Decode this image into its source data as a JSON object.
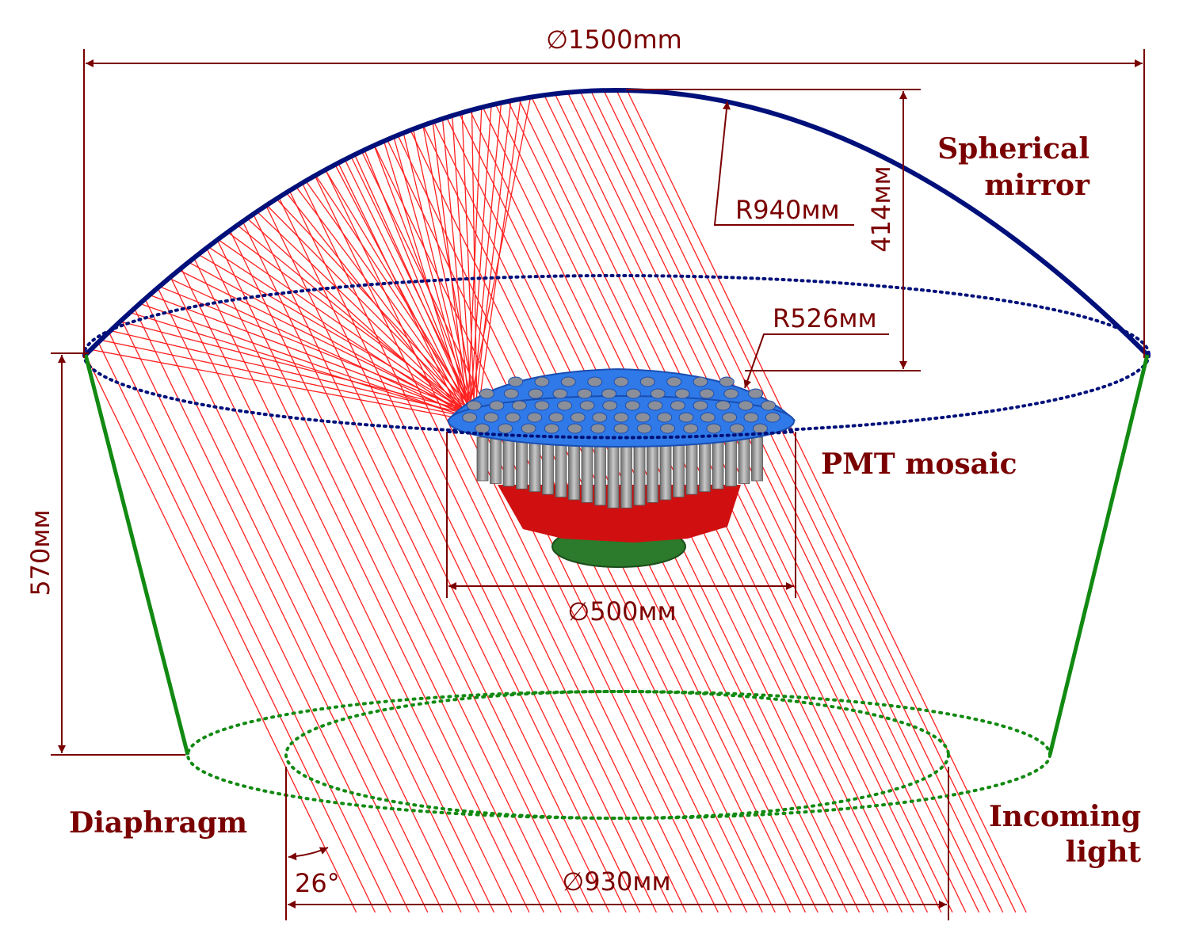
{
  "dimensions": {
    "mirror_diameter": "∅1500mm",
    "mirror_radius": "R940мм",
    "mirror_sag": "414мм",
    "mosaic_radius": "R526мм",
    "mosaic_diameter": "∅500мм",
    "height": "570мм",
    "aperture_diameter": "∅930мм",
    "angle": "26°"
  },
  "labels": {
    "mirror_line1": "Spherical",
    "mirror_line2": "mirror",
    "mosaic": "PMT mosaic",
    "diaphragm": "Diaphragm",
    "light_line1": "Incoming",
    "light_line2": "light"
  },
  "colors": {
    "dimension": "#7a0000",
    "mirror": "#00107a",
    "diaphragm": "#128a12",
    "rays": "#ff2020",
    "mosaic_blue": "#2f7ae8",
    "pmt_red": "#d01010",
    "base_green": "#2c7a2c"
  }
}
